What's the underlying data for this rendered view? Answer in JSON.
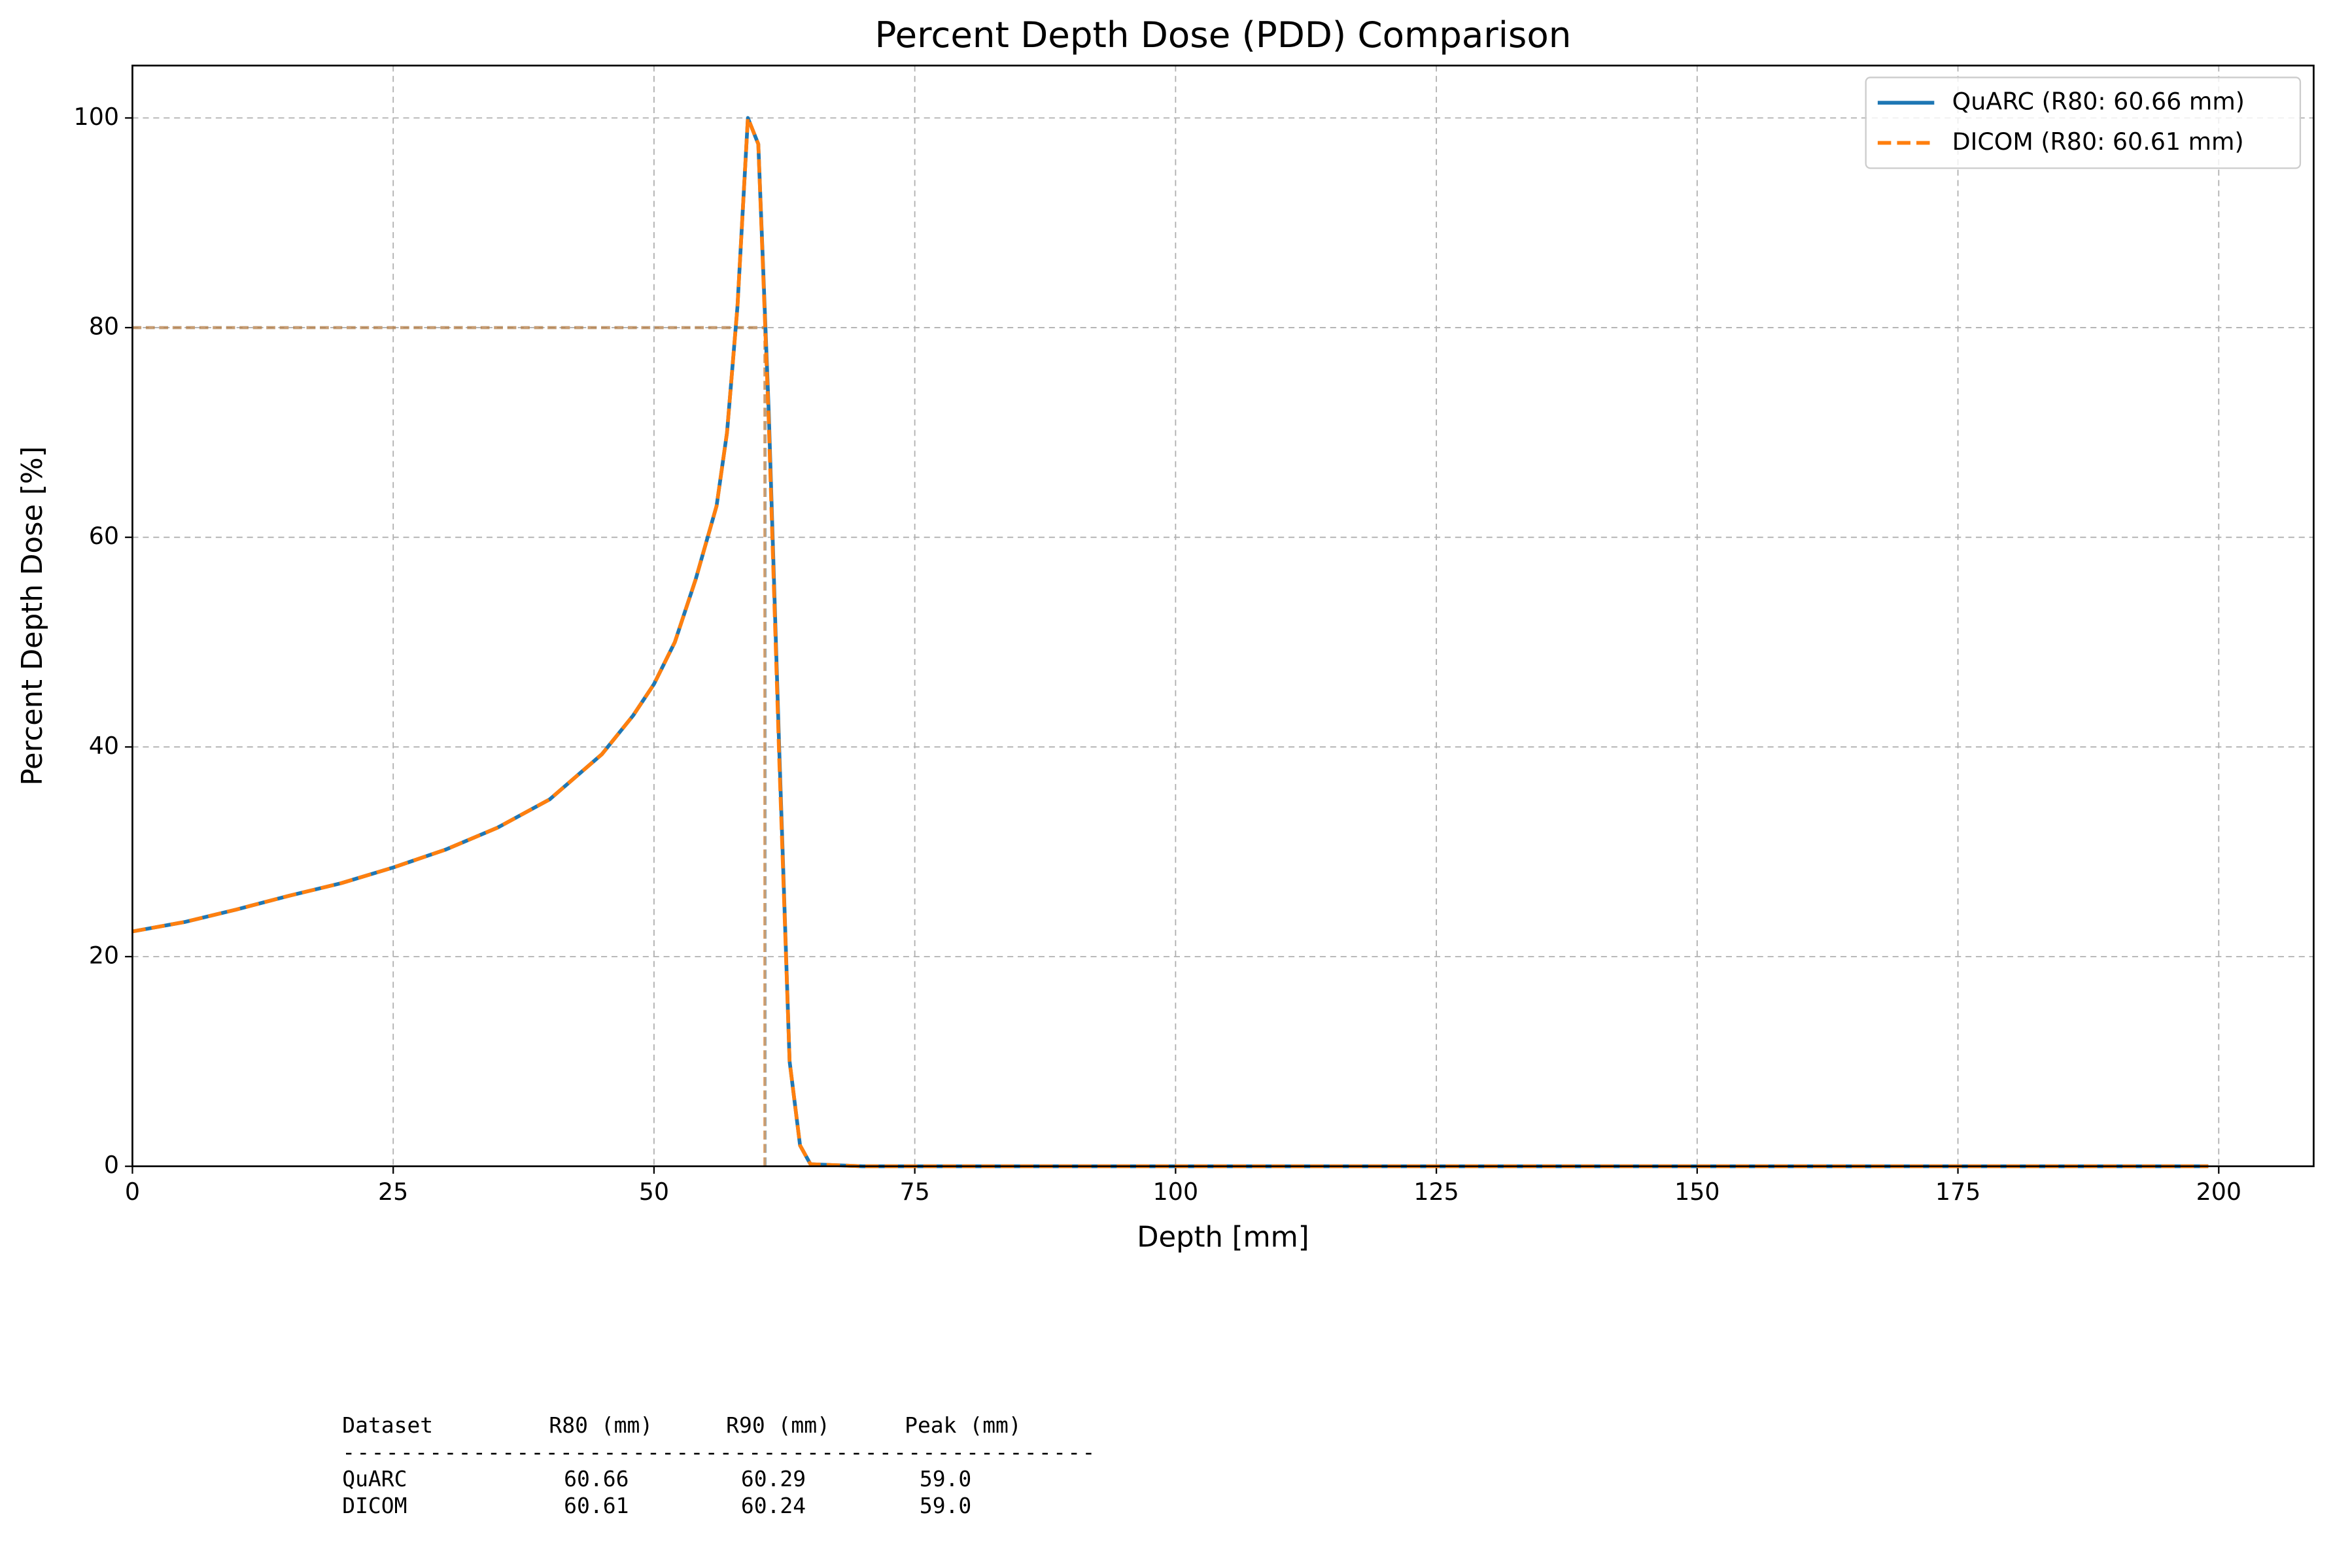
{
  "chart_data": {
    "type": "line",
    "title": "Percent Depth Dose (PDD) Comparison",
    "x_label": "Depth [mm]",
    "y_label": "Percent Depth Dose [%]",
    "x": [
      0,
      5,
      10,
      15,
      20,
      25,
      30,
      35,
      40,
      45,
      48,
      50,
      52,
      54,
      56,
      57,
      58,
      59,
      60,
      61,
      62,
      63,
      64,
      65,
      70,
      100,
      150,
      199
    ],
    "series": [
      {
        "name": "QuARC (R80: 60.66 mm)",
        "color": "#1f77b4",
        "dash": false,
        "values": [
          22.4,
          23.3,
          24.5,
          25.8,
          27.0,
          28.5,
          30.2,
          32.3,
          35.0,
          39.3,
          43.0,
          46.0,
          50.0,
          56.0,
          63.0,
          70.0,
          82.0,
          100,
          97.5,
          72.0,
          40.0,
          10.0,
          2.0,
          0.2,
          0,
          0,
          0,
          0
        ]
      },
      {
        "name": "DICOM (R80: 60.61 mm)",
        "color": "#ff7f0e",
        "dash": true,
        "values": [
          22.4,
          23.3,
          24.5,
          25.8,
          27.0,
          28.5,
          30.2,
          32.3,
          35.0,
          39.3,
          43.0,
          46.0,
          50.0,
          56.0,
          63.0,
          70.0,
          82.0,
          100,
          97.5,
          71.0,
          39.0,
          10.0,
          2.0,
          0.2,
          0,
          0,
          0,
          0
        ]
      }
    ],
    "reference_lines": [
      {
        "x": 60.66,
        "y": 80,
        "color": "#1f77b4"
      },
      {
        "x": 60.61,
        "y": 80,
        "color": "#ff7f0e"
      }
    ],
    "xlim": [
      0,
      209.1
    ],
    "ylim": [
      0,
      105
    ],
    "xticks": [
      0,
      25,
      50,
      75,
      100,
      125,
      150,
      175,
      200
    ],
    "yticks": [
      0,
      20,
      40,
      60,
      80,
      100
    ],
    "grid": true,
    "legend": "upper right"
  },
  "table": {
    "columns": [
      "Dataset",
      "R80 (mm)",
      "R90 (mm)",
      "Peak (mm)"
    ],
    "separator": "----------------------------------------------------",
    "rows": [
      [
        "QuARC",
        "60.66",
        "60.29",
        "59.0"
      ],
      [
        "DICOM",
        "60.61",
        "60.24",
        "59.0"
      ]
    ]
  }
}
